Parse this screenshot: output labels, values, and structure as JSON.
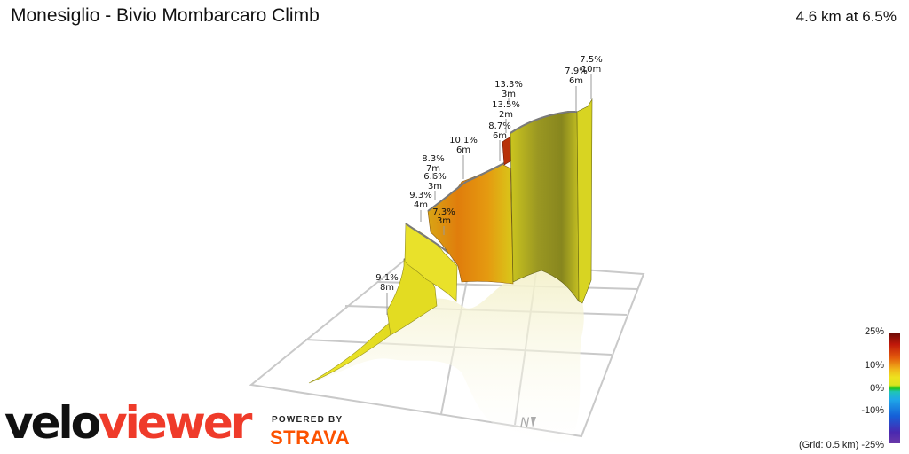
{
  "header": {
    "title": "Monesiglio - Bivio Mombarcaro Climb",
    "summary": "4.6 km at 6.5%"
  },
  "legend": {
    "ticks": [
      "25%",
      "10%",
      "0%",
      "-10%",
      "-25%"
    ],
    "grid_note": "(Grid: 0.5 km)"
  },
  "branding": {
    "logo_part1": "velo",
    "logo_part2": "viewer",
    "powered_by": "POWERED BY",
    "strava": "STRAVA",
    "compass": "N"
  },
  "colors": {
    "yellow": "#e8e21e",
    "orange": "#e38a0c",
    "red": "#c0280a",
    "olive": "#8d8d1e",
    "grid": "#c9c9c9"
  },
  "chart_data": {
    "type": "3d-elevation-profile",
    "title": "Monesiglio - Bivio Mombarcaro Climb",
    "distance_km": 4.6,
    "avg_gradient_pct": 6.5,
    "grid_km": 0.5,
    "color_scale_pct": [
      25,
      10,
      0,
      -10,
      -25
    ],
    "annotations": [
      {
        "gradient": "9.1%",
        "length": "8m"
      },
      {
        "gradient": "9.3%",
        "length": "4m"
      },
      {
        "gradient": "7.3%",
        "length": "3m"
      },
      {
        "gradient": "6.6%",
        "length": "3m"
      },
      {
        "gradient": "8.3%",
        "length": "7m"
      },
      {
        "gradient": "10.1%",
        "length": "6m"
      },
      {
        "gradient": "8.7%",
        "length": "6m"
      },
      {
        "gradient": "13.5%",
        "length": "2m"
      },
      {
        "gradient": "13.3%",
        "length": "3m"
      },
      {
        "gradient": "7.9%",
        "length": "6m"
      },
      {
        "gradient": "7.5%",
        "length": "10m"
      }
    ]
  }
}
